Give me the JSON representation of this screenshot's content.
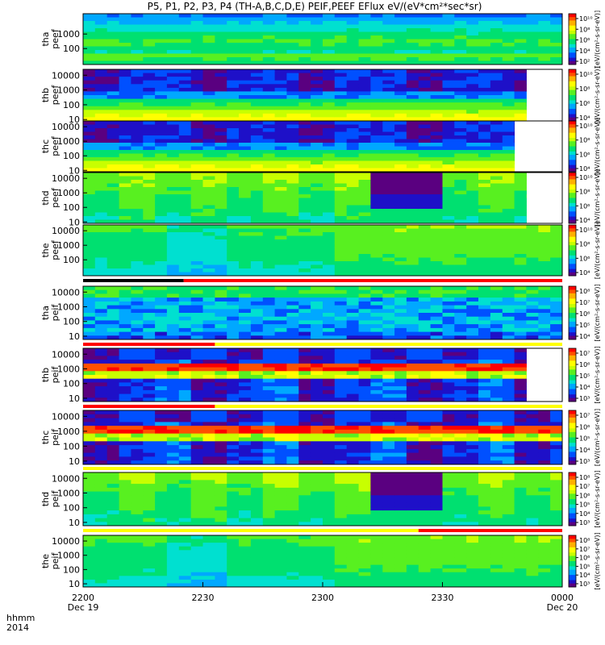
{
  "chart_data": {
    "type": "heatmap",
    "title": "P5, P1, P2, P3, P4 (TH-A,B,C,D,E) PEIF,PEEF EFlux eV/(eV*cm²*sec*sr)",
    "x_axis": {
      "row_label_1": "hhmm",
      "row_label_2": "2014",
      "ticks": [
        {
          "time": "2200",
          "date": "Dec 19"
        },
        {
          "time": "2230",
          "date": ""
        },
        {
          "time": "2300",
          "date": ""
        },
        {
          "time": "2330",
          "date": ""
        },
        {
          "time": "0000",
          "date": "Dec 20"
        }
      ],
      "range_hours": [
        22.0,
        24.0
      ]
    },
    "y_scale": "log",
    "colorbar_scale": "log",
    "colorbar_label": "[eV/(cm²-s-sr-eV)]",
    "panels": [
      {
        "probe": "tha",
        "product": "peef",
        "ylim": [
          8,
          25000
        ],
        "yticks": [
          "1000",
          "100"
        ],
        "cbar_ticks": [
          "10¹⁰",
          "10⁸",
          "10⁶",
          "10⁴",
          "10²"
        ],
        "data_end_hours": 24.0,
        "pattern": "steady"
      },
      {
        "probe": "thb",
        "product": "peef",
        "ylim": [
          8,
          25000
        ],
        "yticks": [
          "10000",
          "1000",
          "100",
          "10"
        ],
        "cbar_ticks": [
          "10¹⁰",
          "10⁸",
          "10⁶",
          "10⁴"
        ],
        "data_end_hours": 23.85,
        "pattern": "blocky"
      },
      {
        "probe": "thc",
        "product": "peef",
        "ylim": [
          8,
          25000
        ],
        "yticks": [
          "10000",
          "1000",
          "100",
          "10"
        ],
        "cbar_ticks": [
          "10¹⁰",
          "10⁸",
          "10⁶",
          "10⁴"
        ],
        "data_end_hours": 23.8,
        "pattern": "blocky"
      },
      {
        "probe": "thd",
        "product": "peef",
        "ylim": [
          8,
          25000
        ],
        "yticks": [
          "10000",
          "1000",
          "100",
          "10"
        ],
        "cbar_ticks": [
          "10¹⁰",
          "10⁸",
          "10⁶",
          "10⁴"
        ],
        "data_end_hours": 23.85,
        "pattern": "dropout"
      },
      {
        "probe": "the",
        "product": "peef",
        "ylim": [
          8,
          25000
        ],
        "yticks": [
          "10000",
          "1000",
          "100"
        ],
        "cbar_ticks": [
          "10¹⁰",
          "10⁸",
          "10⁶",
          "10⁴"
        ],
        "data_end_hours": 24.0,
        "pattern": "smooth"
      },
      {
        "probe": "tha",
        "product": "peif",
        "ylim": [
          6,
          25000
        ],
        "yticks": [
          "10000",
          "1000",
          "100",
          "10"
        ],
        "cbar_ticks": [
          "10⁸",
          "10⁷",
          "10⁶",
          "10⁵",
          "10⁴"
        ],
        "data_end_hours": 24.0,
        "pattern": "noisy"
      },
      {
        "probe": "thb",
        "product": "peif",
        "ylim": [
          6,
          25000
        ],
        "yticks": [
          "10000",
          "1000",
          "100",
          "10"
        ],
        "cbar_ticks": [
          "10⁷",
          "10⁶",
          "10⁵",
          "10⁴",
          "10³"
        ],
        "data_end_hours": 23.85,
        "pattern": "banded"
      },
      {
        "probe": "thc",
        "product": "peif",
        "ylim": [
          6,
          25000
        ],
        "yticks": [
          "10000",
          "1000",
          "100",
          "10"
        ],
        "cbar_ticks": [
          "10⁷",
          "10⁶",
          "10⁵",
          "10⁴",
          "10³"
        ],
        "data_end_hours": 24.0,
        "pattern": "banded"
      },
      {
        "probe": "thd",
        "product": "peif",
        "ylim": [
          6,
          25000
        ],
        "yticks": [
          "10000",
          "1000",
          "100",
          "10"
        ],
        "cbar_ticks": [
          "10⁸",
          "10⁷",
          "10⁶",
          "10⁵",
          "10⁴",
          "10³"
        ],
        "data_end_hours": 24.0,
        "pattern": "dropout"
      },
      {
        "probe": "the",
        "product": "peif",
        "ylim": [
          6,
          25000
        ],
        "yticks": [
          "10000",
          "1000",
          "100",
          "10"
        ],
        "cbar_ticks": [
          "10⁸",
          "10⁷",
          "10⁶",
          "10⁵",
          "10⁴",
          "10³"
        ],
        "data_end_hours": 24.0,
        "pattern": "smooth"
      }
    ],
    "mode_bars": [
      {
        "after_panel": 5,
        "segments": [
          {
            "from": 22.0,
            "to": 22.42,
            "color": "#000000"
          },
          {
            "from": 22.42,
            "to": 24.0,
            "color": "#ff0000"
          }
        ]
      },
      {
        "after_panel": 6,
        "segments": [
          {
            "from": 22.0,
            "to": 22.55,
            "color": "#ff0000"
          },
          {
            "from": 22.55,
            "to": 24.0,
            "color": "#ffff00"
          }
        ]
      },
      {
        "after_panel": 7,
        "segments": [
          {
            "from": 22.0,
            "to": 22.55,
            "color": "#ff0000"
          },
          {
            "from": 22.55,
            "to": 24.0,
            "color": "#ffff00"
          }
        ]
      },
      {
        "after_panel": 8,
        "segments": [
          {
            "from": 22.0,
            "to": 24.0,
            "color": "#ffff00"
          }
        ]
      },
      {
        "after_panel": 9,
        "segments": [
          {
            "from": 22.0,
            "to": 23.4,
            "color": "#ffff00"
          },
          {
            "from": 23.4,
            "to": 24.0,
            "color": "#ff0000"
          }
        ]
      }
    ],
    "colormap": [
      "#5a0080",
      "#1e10c8",
      "#0050ff",
      "#00a8ff",
      "#00e0d0",
      "#00e070",
      "#58f020",
      "#c8ff00",
      "#ffff00",
      "#ffb000",
      "#ff5000",
      "#ff0000"
    ]
  }
}
